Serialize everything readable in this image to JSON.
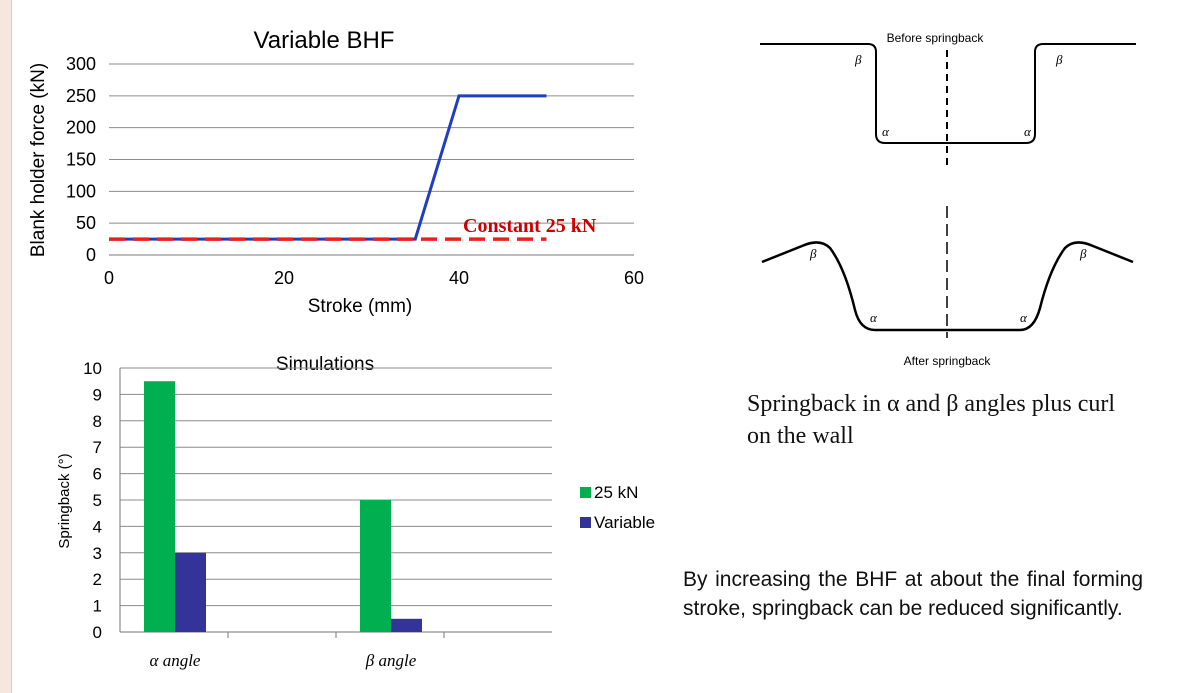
{
  "chart_data": [
    {
      "type": "line",
      "title": "Variable BHF",
      "xlabel": "Stroke (mm)",
      "ylabel": "Blank  holder  force (kN)",
      "xlim": [
        0,
        60
      ],
      "ylim": [
        0,
        300
      ],
      "xticks": [
        0,
        20,
        40,
        60
      ],
      "yticks": [
        0,
        50,
        100,
        150,
        200,
        250,
        300
      ],
      "grid": "horizontal",
      "series": [
        {
          "x": [
            0,
            35,
            40,
            50
          ],
          "y": [
            25,
            25,
            250,
            250
          ],
          "color": "#1f3fbf",
          "style": "solid"
        },
        {
          "x": [
            0,
            50
          ],
          "y": [
            25,
            25
          ],
          "color": "#e8211c",
          "style": "dashed"
        }
      ],
      "annotation": {
        "text": "Constant 25 kN",
        "color": "#cc0000"
      }
    },
    {
      "type": "bar",
      "title": "Simulations",
      "ylabel": "Springback (°)",
      "categories": [
        "α angle",
        "β angle"
      ],
      "ylim": [
        0,
        10
      ],
      "yticks": [
        0,
        1,
        2,
        3,
        4,
        5,
        6,
        7,
        8,
        9,
        10
      ],
      "grid": "horizontal",
      "legend": "right",
      "series": [
        {
          "name": "25 kN",
          "values": [
            9.5,
            5.0
          ],
          "color": "#00b050"
        },
        {
          "name": "Variable",
          "values": [
            3.0,
            0.5
          ],
          "color": "#333399"
        }
      ]
    }
  ],
  "diagram": {
    "before_label": "Before springback",
    "after_label": "After springback",
    "alpha": "α",
    "beta": "β"
  },
  "caption": "Springback in α and β angles plus curl on the wall",
  "note": "By increasing the BHF at about the final forming stroke, springback can be reduced significantly."
}
